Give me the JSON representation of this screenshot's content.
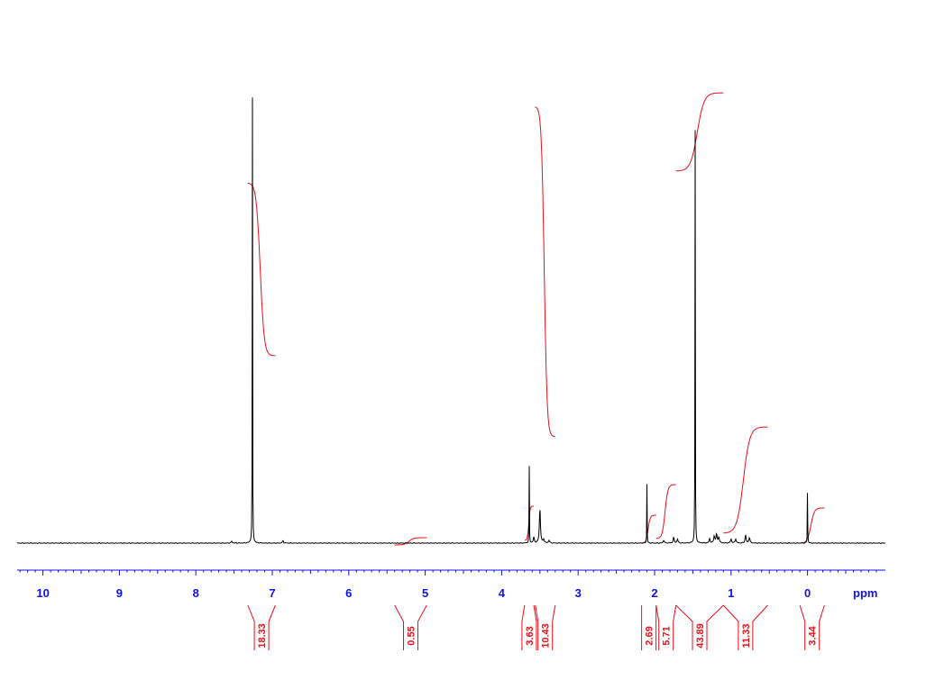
{
  "chart_data": {
    "type": "line",
    "title": "",
    "xlabel": "ppm",
    "ylabel": "",
    "x_reversed": true,
    "xlim": [
      10.3,
      -1.0
    ],
    "ylim": [
      0,
      100
    ],
    "x_ticks": [
      {
        "value": 10,
        "label": "10"
      },
      {
        "value": 9,
        "label": "9"
      },
      {
        "value": 8,
        "label": "8"
      },
      {
        "value": 7,
        "label": "7"
      },
      {
        "value": 6,
        "label": "6"
      },
      {
        "value": 5,
        "label": "5"
      },
      {
        "value": 4,
        "label": "4"
      },
      {
        "value": 3,
        "label": "3"
      },
      {
        "value": 2,
        "label": "2"
      },
      {
        "value": 1,
        "label": "1"
      },
      {
        "value": 0,
        "label": "0"
      }
    ],
    "peaks": [
      {
        "ppm": 7.26,
        "height": 100
      },
      {
        "ppm": 7.53,
        "height": 0.4
      },
      {
        "ppm": 6.86,
        "height": 0.5
      },
      {
        "ppm": 3.64,
        "height": 18.5
      },
      {
        "ppm": 3.58,
        "height": 1.2
      },
      {
        "ppm": 3.5,
        "height": 7.5
      },
      {
        "ppm": 3.45,
        "height": 0.8
      },
      {
        "ppm": 3.38,
        "height": 0.6
      },
      {
        "ppm": 2.1,
        "height": 12.6
      },
      {
        "ppm": 1.88,
        "height": 0.6
      },
      {
        "ppm": 1.75,
        "height": 1.2
      },
      {
        "ppm": 1.7,
        "height": 0.8
      },
      {
        "ppm": 1.47,
        "height": 94.8
      },
      {
        "ppm": 1.28,
        "height": 0.9
      },
      {
        "ppm": 1.22,
        "height": 1.5
      },
      {
        "ppm": 1.19,
        "height": 1.9
      },
      {
        "ppm": 1.16,
        "height": 1.3
      },
      {
        "ppm": 1.0,
        "height": 0.9
      },
      {
        "ppm": 0.94,
        "height": 0.9
      },
      {
        "ppm": 0.81,
        "height": 1.7
      },
      {
        "ppm": 0.76,
        "height": 1.2
      },
      {
        "ppm": 0.0,
        "height": 13.6
      }
    ],
    "integrals": [
      {
        "from": 7.32,
        "to": 6.96,
        "value": "18.33"
      },
      {
        "from": 5.4,
        "to": 4.98,
        "value": "0.55"
      },
      {
        "from": 3.7,
        "to": 3.58,
        "value": "3.63"
      },
      {
        "from": 3.56,
        "to": 3.3,
        "value": "10.43"
      },
      {
        "from": 2.17,
        "to": 1.98,
        "value": "2.69"
      },
      {
        "from": 1.98,
        "to": 1.72,
        "value": "5.71"
      },
      {
        "from": 1.72,
        "to": 1.1,
        "value": "43.89"
      },
      {
        "from": 1.1,
        "to": 0.52,
        "value": "11.33"
      },
      {
        "from": 0.1,
        "to": -0.22,
        "value": "3.44"
      }
    ]
  },
  "colors": {
    "spectrum": "#000000",
    "integral": "#e8101a",
    "axis": "#1010ee"
  }
}
